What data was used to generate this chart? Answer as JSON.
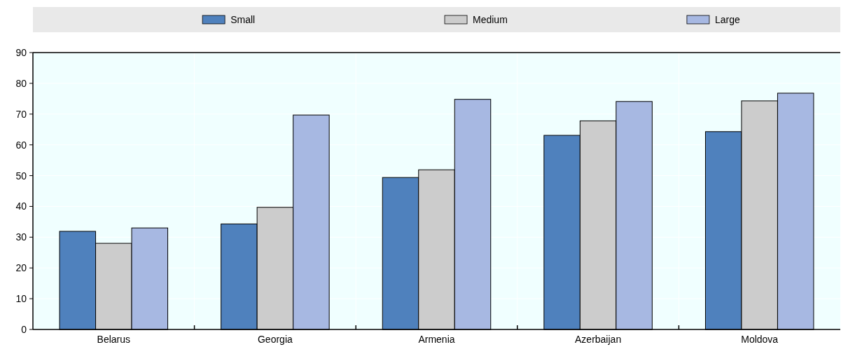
{
  "chart_data": {
    "type": "bar",
    "categories": [
      "Belarus",
      "Georgia",
      "Armenia",
      "Azerbaijan",
      "Moldova"
    ],
    "series": [
      {
        "name": "Small",
        "color": "#4f81bd",
        "values": [
          31.9,
          34.3,
          49.4,
          63.1,
          64.3
        ]
      },
      {
        "name": "Medium",
        "color": "#cccccc",
        "values": [
          28.0,
          39.7,
          51.9,
          67.8,
          74.3
        ]
      },
      {
        "name": "Large",
        "color": "#a7b8e2",
        "values": [
          33.0,
          69.7,
          74.8,
          74.1,
          76.8
        ]
      }
    ],
    "ylim": [
      0,
      90
    ],
    "yticks": [
      0,
      10,
      20,
      30,
      40,
      50,
      60,
      70,
      80,
      90
    ],
    "grid": true,
    "legend": "top"
  }
}
